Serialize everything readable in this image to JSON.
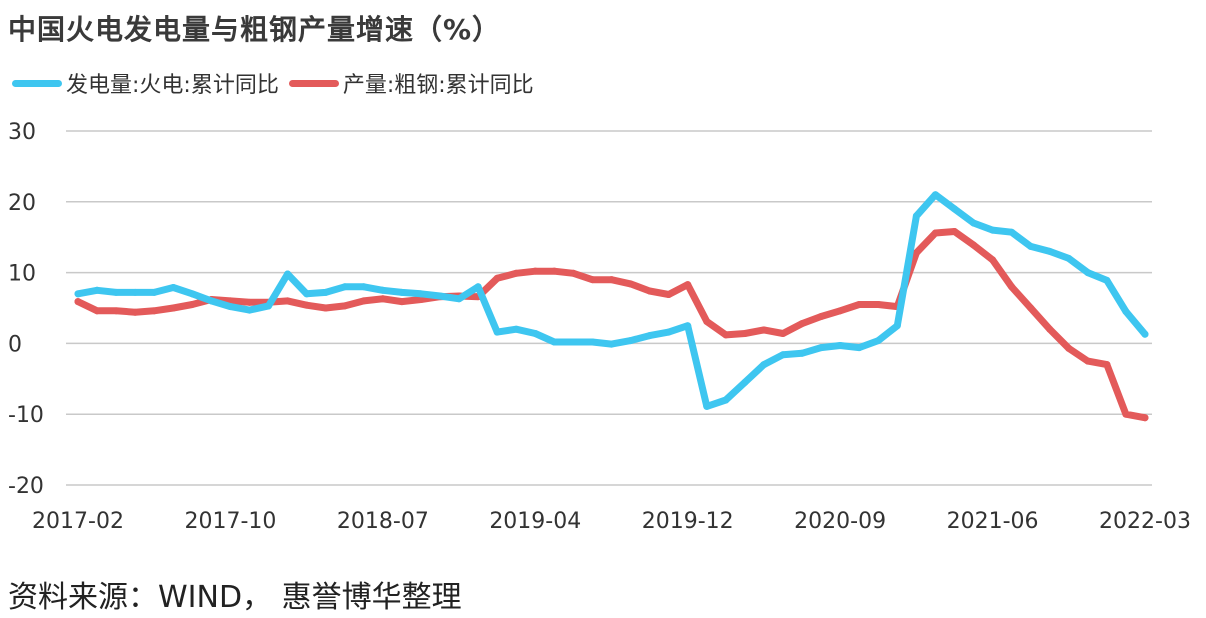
{
  "title": "中国火电发电量与粗钢产量增速（%）",
  "source_note": "资料来源：WIND， 惠誉博华整理",
  "chart_data": {
    "type": "line",
    "title": "中国火电发电量与粗钢产量增速（%）",
    "x_tick_labels": [
      "2017-02",
      "2017-10",
      "2018-07",
      "2019-04",
      "2019-12",
      "2020-09",
      "2021-06",
      "2022-03"
    ],
    "y_ticks": [
      30,
      20,
      10,
      0,
      -10,
      -20
    ],
    "ylim": [
      -20,
      30
    ],
    "grid": true,
    "legend_position": "top-left",
    "x": [
      "2017-02",
      "2017-03",
      "2017-04",
      "2017-05",
      "2017-06",
      "2017-07",
      "2017-08",
      "2017-09",
      "2017-10",
      "2017-11",
      "2017-12",
      "2018-02",
      "2018-03",
      "2018-04",
      "2018-05",
      "2018-06",
      "2018-07",
      "2018-08",
      "2018-09",
      "2018-10",
      "2018-11",
      "2018-12",
      "2019-02",
      "2019-03",
      "2019-04",
      "2019-05",
      "2019-06",
      "2019-07",
      "2019-08",
      "2019-09",
      "2019-10",
      "2019-11",
      "2019-12",
      "2020-02",
      "2020-03",
      "2020-04",
      "2020-05",
      "2020-06",
      "2020-07",
      "2020-08",
      "2020-09",
      "2020-10",
      "2020-11",
      "2020-12",
      "2021-02",
      "2021-03",
      "2021-04",
      "2021-05",
      "2021-06",
      "2021-07",
      "2021-08",
      "2021-09",
      "2021-10",
      "2021-11",
      "2021-12",
      "2022-02",
      "2022-03"
    ],
    "series": [
      {
        "name": "发电量:火电:累计同比",
        "color": "#3ec6f0",
        "values": [
          7.0,
          7.5,
          7.2,
          7.2,
          7.2,
          7.9,
          7.0,
          6.0,
          5.2,
          4.7,
          5.3,
          9.8,
          7.0,
          7.2,
          8.0,
          8.0,
          7.5,
          7.2,
          7.0,
          6.7,
          6.3,
          8.0,
          1.6,
          2.0,
          1.4,
          0.2,
          0.2,
          0.2,
          -0.1,
          0.4,
          1.1,
          1.6,
          2.5,
          -8.9,
          -8.0,
          -5.5,
          -3.0,
          -1.6,
          -1.4,
          -0.6,
          -0.3,
          -0.6,
          0.4,
          2.5,
          18.0,
          21.0,
          19.0,
          17.0,
          16.0,
          15.7,
          13.7,
          13.0,
          12.0,
          10.0,
          8.9,
          4.5,
          1.3
        ]
      },
      {
        "name": "产量:粗钢:累计同比",
        "color": "#e35a5a",
        "values": [
          5.9,
          4.6,
          4.6,
          4.4,
          4.6,
          5.0,
          5.5,
          6.2,
          6.0,
          5.8,
          5.8,
          6.0,
          5.4,
          5.0,
          5.3,
          6.0,
          6.3,
          5.9,
          6.2,
          6.6,
          6.7,
          6.6,
          9.2,
          9.9,
          10.2,
          10.2,
          9.9,
          9.0,
          9.0,
          8.4,
          7.4,
          6.9,
          8.3,
          3.1,
          1.2,
          1.4,
          1.9,
          1.4,
          2.8,
          3.8,
          4.6,
          5.5,
          5.5,
          5.2,
          12.8,
          15.6,
          15.8,
          13.9,
          11.8,
          8.0,
          5.0,
          2.0,
          -0.7,
          -2.5,
          -3.0,
          -10.0,
          -10.5
        ]
      }
    ]
  }
}
